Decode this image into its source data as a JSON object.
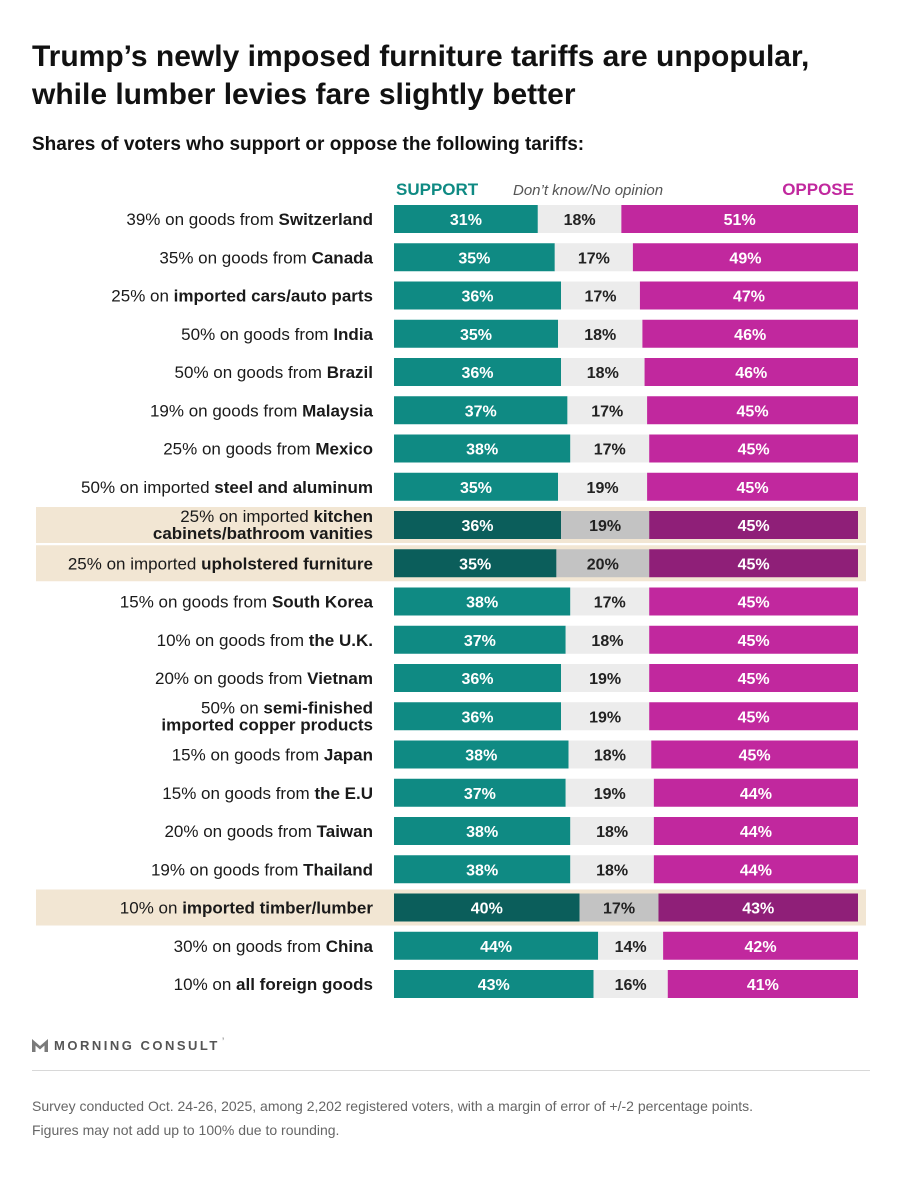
{
  "header": {
    "title": "Trump’s newly imposed furniture tariffs are unpopular, while lumber levies fare slightly better",
    "subtitle": "Shares of voters who support or oppose the following tariffs:"
  },
  "legend": {
    "support": "SUPPORT",
    "dont_know": "Don’t know/No opinion",
    "oppose": "OPPOSE"
  },
  "colors": {
    "support": "#0f8a83",
    "support_highlight": "#0b5e5b",
    "dont_know": "#ececec",
    "dont_know_highlight": "#c3c3c3",
    "oppose": "#c1289e",
    "oppose_highlight": "#8f1f78",
    "highlight_band": "#f2e6d3"
  },
  "chart_data": {
    "type": "bar",
    "orientation": "horizontal-stacked-100",
    "title": "Trump’s newly imposed furniture tariffs are unpopular, while lumber levies fare slightly better",
    "subtitle": "Shares of voters who support or oppose the following tariffs:",
    "series_names": [
      "SUPPORT",
      "Don’t know/No opinion",
      "OPPOSE"
    ],
    "value_suffix": "%",
    "xlim": [
      0,
      100
    ],
    "categories": [
      {
        "parts": [
          {
            "text": "39% on goods from ",
            "b": false
          },
          {
            "text": "Switzerland",
            "b": true
          }
        ],
        "support": 31,
        "dk": 18,
        "oppose": 51,
        "highlight": false
      },
      {
        "parts": [
          {
            "text": "35% on goods from ",
            "b": false
          },
          {
            "text": "Canada",
            "b": true
          }
        ],
        "support": 35,
        "dk": 17,
        "oppose": 49,
        "highlight": false
      },
      {
        "parts": [
          {
            "text": "25% on ",
            "b": false
          },
          {
            "text": "imported cars/auto parts",
            "b": true
          }
        ],
        "support": 36,
        "dk": 17,
        "oppose": 47,
        "highlight": false
      },
      {
        "parts": [
          {
            "text": "50% on goods from ",
            "b": false
          },
          {
            "text": "India",
            "b": true
          }
        ],
        "support": 35,
        "dk": 18,
        "oppose": 46,
        "highlight": false
      },
      {
        "parts": [
          {
            "text": "50% on goods from ",
            "b": false
          },
          {
            "text": "Brazil",
            "b": true
          }
        ],
        "support": 36,
        "dk": 18,
        "oppose": 46,
        "highlight": false
      },
      {
        "parts": [
          {
            "text": "19% on goods from ",
            "b": false
          },
          {
            "text": "Malaysia",
            "b": true
          }
        ],
        "support": 37,
        "dk": 17,
        "oppose": 45,
        "highlight": false
      },
      {
        "parts": [
          {
            "text": "25% on goods from ",
            "b": false
          },
          {
            "text": "Mexico",
            "b": true
          }
        ],
        "support": 38,
        "dk": 17,
        "oppose": 45,
        "highlight": false
      },
      {
        "parts": [
          {
            "text": "50% on imported ",
            "b": false
          },
          {
            "text": "steel and aluminum",
            "b": true
          }
        ],
        "support": 35,
        "dk": 19,
        "oppose": 45,
        "highlight": false
      },
      {
        "parts": [
          {
            "text": "25% on imported ",
            "b": false
          },
          {
            "text": "kitchen",
            "b": true
          }
        ],
        "line2": "cabinets/bathroom vanities",
        "support": 36,
        "dk": 19,
        "oppose": 45,
        "highlight": true
      },
      {
        "parts": [
          {
            "text": "25% on imported ",
            "b": false
          },
          {
            "text": "upholstered furniture",
            "b": true
          }
        ],
        "support": 35,
        "dk": 20,
        "oppose": 45,
        "highlight": true
      },
      {
        "parts": [
          {
            "text": "15% on goods from ",
            "b": false
          },
          {
            "text": "South Korea",
            "b": true
          }
        ],
        "support": 38,
        "dk": 17,
        "oppose": 45,
        "highlight": false
      },
      {
        "parts": [
          {
            "text": "10% on goods from ",
            "b": false
          },
          {
            "text": "the U.K.",
            "b": true
          }
        ],
        "support": 37,
        "dk": 18,
        "oppose": 45,
        "highlight": false
      },
      {
        "parts": [
          {
            "text": "20% on goods from ",
            "b": false
          },
          {
            "text": "Vietnam",
            "b": true
          }
        ],
        "support": 36,
        "dk": 19,
        "oppose": 45,
        "highlight": false
      },
      {
        "parts": [
          {
            "text": "50% on ",
            "b": false
          },
          {
            "text": "semi-finished",
            "b": true
          }
        ],
        "line2": "imported copper products",
        "support": 36,
        "dk": 19,
        "oppose": 45,
        "highlight": false
      },
      {
        "parts": [
          {
            "text": "15% on goods from ",
            "b": false
          },
          {
            "text": "Japan",
            "b": true
          }
        ],
        "support": 38,
        "dk": 18,
        "oppose": 45,
        "highlight": false
      },
      {
        "parts": [
          {
            "text": "15% on goods from ",
            "b": false
          },
          {
            "text": "the E.U",
            "b": true
          }
        ],
        "support": 37,
        "dk": 19,
        "oppose": 44,
        "highlight": false
      },
      {
        "parts": [
          {
            "text": "20% on goods from ",
            "b": false
          },
          {
            "text": "Taiwan",
            "b": true
          }
        ],
        "support": 38,
        "dk": 18,
        "oppose": 44,
        "highlight": false
      },
      {
        "parts": [
          {
            "text": "19% on goods from ",
            "b": false
          },
          {
            "text": "Thailand",
            "b": true
          }
        ],
        "support": 38,
        "dk": 18,
        "oppose": 44,
        "highlight": false
      },
      {
        "parts": [
          {
            "text": "10% on ",
            "b": false
          },
          {
            "text": "imported timber/lumber",
            "b": true
          }
        ],
        "support": 40,
        "dk": 17,
        "oppose": 43,
        "highlight": true
      },
      {
        "parts": [
          {
            "text": "30% on goods from ",
            "b": false
          },
          {
            "text": "China",
            "b": true
          }
        ],
        "support": 44,
        "dk": 14,
        "oppose": 42,
        "highlight": false
      },
      {
        "parts": [
          {
            "text": "10% on ",
            "b": false
          },
          {
            "text": "all foreign goods",
            "b": true
          }
        ],
        "support": 43,
        "dk": 16,
        "oppose": 41,
        "highlight": false
      }
    ]
  },
  "footer": {
    "logo_text": "MORNING CONSULT",
    "logo_mark": "’",
    "note_line1": "Survey conducted Oct. 24-26, 2025, among 2,202 registered voters, with a margin of error of +/-2 percentage points.",
    "note_line2": "Figures may not add up to 100% due to rounding."
  }
}
